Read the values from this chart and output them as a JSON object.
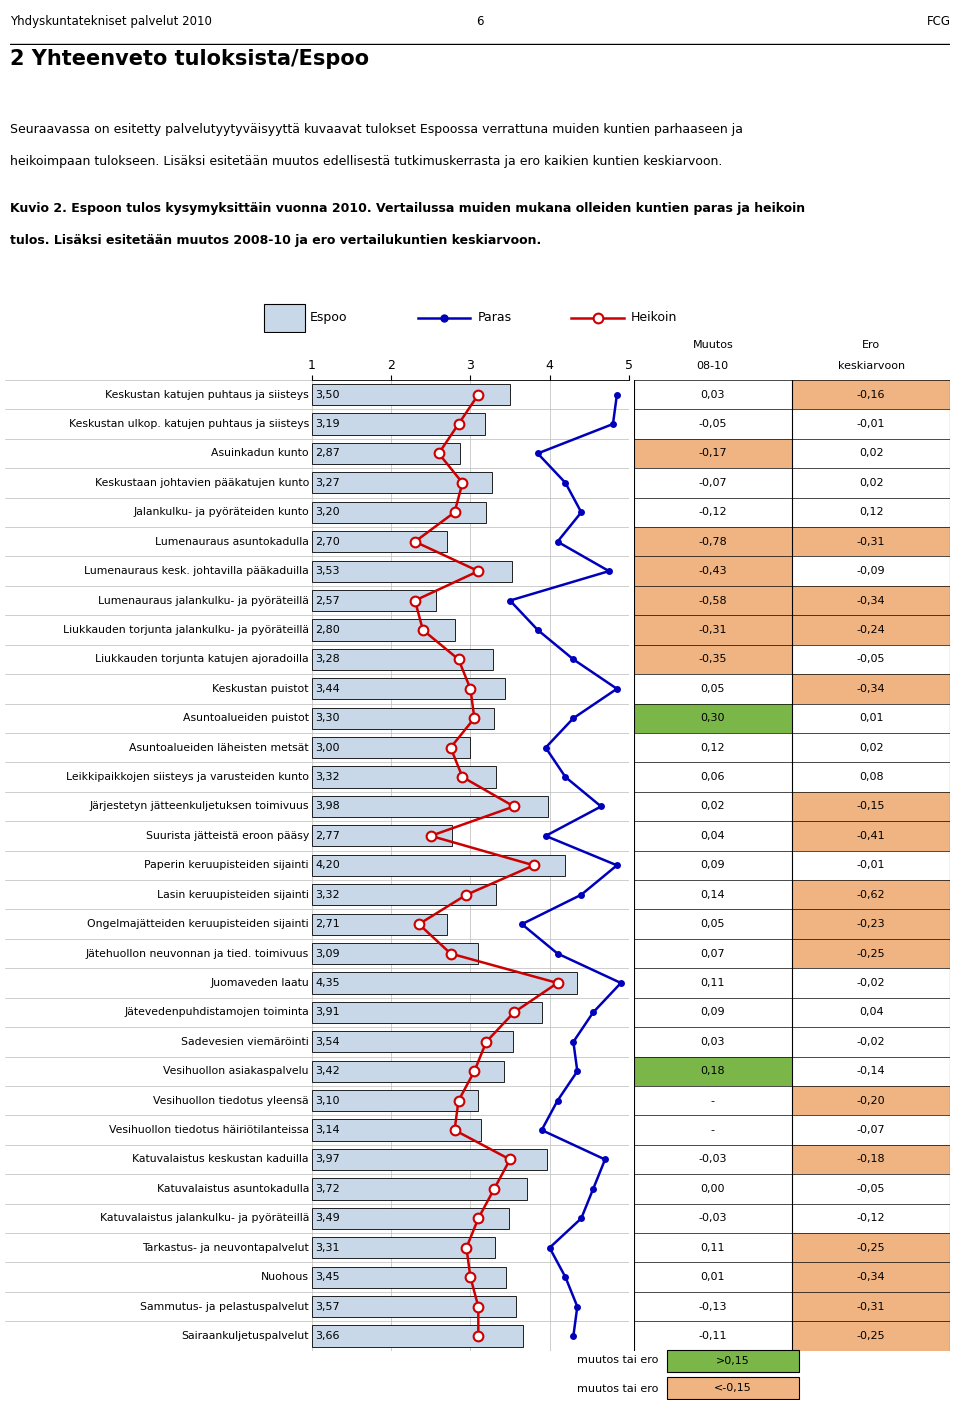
{
  "page_header_left": "Yhdyskuntatekniset palvelut 2010",
  "page_header_center": "6",
  "page_header_right": "FCG",
  "title": "2 Yhteenveto tuloksista/Espoo",
  "intro_text1": "Seuraavassa on esitetty palvelutyytyväisyyttä kuvaavat tulokset Espoossa verrattuna muiden kuntien parhaaseen ja",
  "intro_text2": "heikoimpaan tulokseen. Lisäksi esitetään muutos edellisestä tutkimuskerrasta ja ero kaikien kuntien keskiarvoon.",
  "caption1": "Kuvio 2. Espoon tulos kysymyksittäin vuonna 2010. Vertailussa muiden mukana olleiden kuntien paras ja heikoin",
  "caption2": "tulos. Lisäksi esitetään muutos 2008-10 ja ero vertailukuntien keskiarvoon.",
  "rows": [
    {
      "label": "Keskustan katujen puhtaus ja siisteys",
      "espoo": 3.5,
      "paras": 4.85,
      "heikoin": 3.1,
      "muutos": "0,03",
      "ero": "-0,16",
      "muutos_val": 0.03,
      "ero_val": -0.16
    },
    {
      "label": "Keskustan ulkop. katujen puhtaus ja siisteys",
      "espoo": 3.19,
      "paras": 4.8,
      "heikoin": 2.85,
      "muutos": "-0,05",
      "ero": "-0,01",
      "muutos_val": -0.05,
      "ero_val": -0.01
    },
    {
      "label": "Asuinkadun kunto",
      "espoo": 2.87,
      "paras": 3.85,
      "heikoin": 2.6,
      "muutos": "-0,17",
      "ero": "0,02",
      "muutos_val": -0.17,
      "ero_val": 0.02
    },
    {
      "label": "Keskustaan johtavien pääkatujen kunto",
      "espoo": 3.27,
      "paras": 4.2,
      "heikoin": 2.9,
      "muutos": "-0,07",
      "ero": "0,02",
      "muutos_val": -0.07,
      "ero_val": 0.02
    },
    {
      "label": "Jalankulku- ja pyöräteiden kunto",
      "espoo": 3.2,
      "paras": 4.4,
      "heikoin": 2.8,
      "muutos": "-0,12",
      "ero": "0,12",
      "muutos_val": -0.12,
      "ero_val": 0.12
    },
    {
      "label": "Lumenauraus asuntokadulla",
      "espoo": 2.7,
      "paras": 4.1,
      "heikoin": 2.3,
      "muutos": "-0,78",
      "ero": "-0,31",
      "muutos_val": -0.78,
      "ero_val": -0.31
    },
    {
      "label": "Lumenauraus kesk. johtavilla pääkaduilla",
      "espoo": 3.53,
      "paras": 4.75,
      "heikoin": 3.1,
      "muutos": "-0,43",
      "ero": "-0,09",
      "muutos_val": -0.43,
      "ero_val": -0.09
    },
    {
      "label": "Lumenauraus jalankulku- ja pyöräteillä",
      "espoo": 2.57,
      "paras": 3.5,
      "heikoin": 2.3,
      "muutos": "-0,58",
      "ero": "-0,34",
      "muutos_val": -0.58,
      "ero_val": -0.34
    },
    {
      "label": "Liukkauden torjunta jalankulku- ja pyöräteillä",
      "espoo": 2.8,
      "paras": 3.85,
      "heikoin": 2.4,
      "muutos": "-0,31",
      "ero": "-0,24",
      "muutos_val": -0.31,
      "ero_val": -0.24
    },
    {
      "label": "Liukkauden torjunta katujen ajoradoilla",
      "espoo": 3.28,
      "paras": 4.3,
      "heikoin": 2.85,
      "muutos": "-0,35",
      "ero": "-0,05",
      "muutos_val": -0.35,
      "ero_val": -0.05
    },
    {
      "label": "Keskustan puistot",
      "espoo": 3.44,
      "paras": 4.85,
      "heikoin": 3.0,
      "muutos": "0,05",
      "ero": "-0,34",
      "muutos_val": 0.05,
      "ero_val": -0.34
    },
    {
      "label": "Asuntoalueiden puistot",
      "espoo": 3.3,
      "paras": 4.3,
      "heikoin": 3.05,
      "muutos": "0,30",
      "ero": "0,01",
      "muutos_val": 0.3,
      "ero_val": 0.01
    },
    {
      "label": "Asuntoalueiden läheisten metsät",
      "espoo": 3.0,
      "paras": 3.95,
      "heikoin": 2.75,
      "muutos": "0,12",
      "ero": "0,02",
      "muutos_val": 0.12,
      "ero_val": 0.02
    },
    {
      "label": "Leikkipaikkojen siisteys ja varusteiden kunto",
      "espoo": 3.32,
      "paras": 4.2,
      "heikoin": 2.9,
      "muutos": "0,06",
      "ero": "0,08",
      "muutos_val": 0.06,
      "ero_val": 0.08
    },
    {
      "label": "Järjestetyn jätteenkuljetuksen toimivuus",
      "espoo": 3.98,
      "paras": 4.65,
      "heikoin": 3.55,
      "muutos": "0,02",
      "ero": "-0,15",
      "muutos_val": 0.02,
      "ero_val": -0.15
    },
    {
      "label": "Suurista jätteistä eroon pääsy",
      "espoo": 2.77,
      "paras": 3.95,
      "heikoin": 2.5,
      "muutos": "0,04",
      "ero": "-0,41",
      "muutos_val": 0.04,
      "ero_val": -0.41
    },
    {
      "label": "Paperin keruupisteiden sijainti",
      "espoo": 4.2,
      "paras": 4.85,
      "heikoin": 3.8,
      "muutos": "0,09",
      "ero": "-0,01",
      "muutos_val": 0.09,
      "ero_val": -0.01
    },
    {
      "label": "Lasin keruupisteiden sijainti",
      "espoo": 3.32,
      "paras": 4.4,
      "heikoin": 2.95,
      "muutos": "0,14",
      "ero": "-0,62",
      "muutos_val": 0.14,
      "ero_val": -0.62
    },
    {
      "label": "Ongelmajätteiden keruupisteiden sijainti",
      "espoo": 2.71,
      "paras": 3.65,
      "heikoin": 2.35,
      "muutos": "0,05",
      "ero": "-0,23",
      "muutos_val": 0.05,
      "ero_val": -0.23
    },
    {
      "label": "Jätehuollon neuvonnan ja tied. toimivuus",
      "espoo": 3.09,
      "paras": 4.1,
      "heikoin": 2.75,
      "muutos": "0,07",
      "ero": "-0,25",
      "muutos_val": 0.07,
      "ero_val": -0.25
    },
    {
      "label": "Juomaveden laatu",
      "espoo": 4.35,
      "paras": 4.9,
      "heikoin": 4.1,
      "muutos": "0,11",
      "ero": "-0,02",
      "muutos_val": 0.11,
      "ero_val": -0.02
    },
    {
      "label": "Jätevedenpuhdistamojen toiminta",
      "espoo": 3.91,
      "paras": 4.55,
      "heikoin": 3.55,
      "muutos": "0,09",
      "ero": "0,04",
      "muutos_val": 0.09,
      "ero_val": 0.04
    },
    {
      "label": "Sadevesien viemäröinti",
      "espoo": 3.54,
      "paras": 4.3,
      "heikoin": 3.2,
      "muutos": "0,03",
      "ero": "-0,02",
      "muutos_val": 0.03,
      "ero_val": -0.02
    },
    {
      "label": "Vesihuollon asiakaspalvelu",
      "espoo": 3.42,
      "paras": 4.35,
      "heikoin": 3.05,
      "muutos": "0,18",
      "ero": "-0,14",
      "muutos_val": 0.18,
      "ero_val": -0.14
    },
    {
      "label": "Vesihuollon tiedotus yleensä",
      "espoo": 3.1,
      "paras": 4.1,
      "heikoin": 2.85,
      "muutos": "-",
      "ero": "-0,20",
      "muutos_val": null,
      "ero_val": -0.2
    },
    {
      "label": "Vesihuollon tiedotus häiriötilanteissa",
      "espoo": 3.14,
      "paras": 3.9,
      "heikoin": 2.8,
      "muutos": "-",
      "ero": "-0,07",
      "muutos_val": null,
      "ero_val": -0.07
    },
    {
      "label": "Katuvalaistus keskustan kaduilla",
      "espoo": 3.97,
      "paras": 4.7,
      "heikoin": 3.5,
      "muutos": "-0,03",
      "ero": "-0,18",
      "muutos_val": -0.03,
      "ero_val": -0.18
    },
    {
      "label": "Katuvalaistus asuntokadulla",
      "espoo": 3.72,
      "paras": 4.55,
      "heikoin": 3.3,
      "muutos": "0,00",
      "ero": "-0,05",
      "muutos_val": 0.0,
      "ero_val": -0.05
    },
    {
      "label": "Katuvalaistus jalankulku- ja pyöräteillä",
      "espoo": 3.49,
      "paras": 4.4,
      "heikoin": 3.1,
      "muutos": "-0,03",
      "ero": "-0,12",
      "muutos_val": -0.03,
      "ero_val": -0.12
    },
    {
      "label": "Tarkastus- ja neuvontapalvelut",
      "espoo": 3.31,
      "paras": 4.0,
      "heikoin": 2.95,
      "muutos": "0,11",
      "ero": "-0,25",
      "muutos_val": 0.11,
      "ero_val": -0.25
    },
    {
      "label": "Nuohous",
      "espoo": 3.45,
      "paras": 4.2,
      "heikoin": 3.0,
      "muutos": "0,01",
      "ero": "-0,34",
      "muutos_val": 0.01,
      "ero_val": -0.34
    },
    {
      "label": "Sammutus- ja pelastuspalvelut",
      "espoo": 3.57,
      "paras": 4.35,
      "heikoin": 3.1,
      "muutos": "-0,13",
      "ero": "-0,31",
      "muutos_val": -0.13,
      "ero_val": -0.31
    },
    {
      "label": "Sairaankuljetuspalvelut",
      "espoo": 3.66,
      "paras": 4.3,
      "heikoin": 3.1,
      "muutos": "-0,11",
      "ero": "-0,25",
      "muutos_val": -0.11,
      "ero_val": -0.25
    }
  ],
  "bar_color": "#c8d8e8",
  "paras_color": "#0000bb",
  "heikoin_color": "#cc0000",
  "green_color": "#7ab648",
  "orange_color": "#f0b482",
  "highlight_threshold": 0.15,
  "footer_val1": ">0,15",
  "footer_val2": "<-0,15"
}
